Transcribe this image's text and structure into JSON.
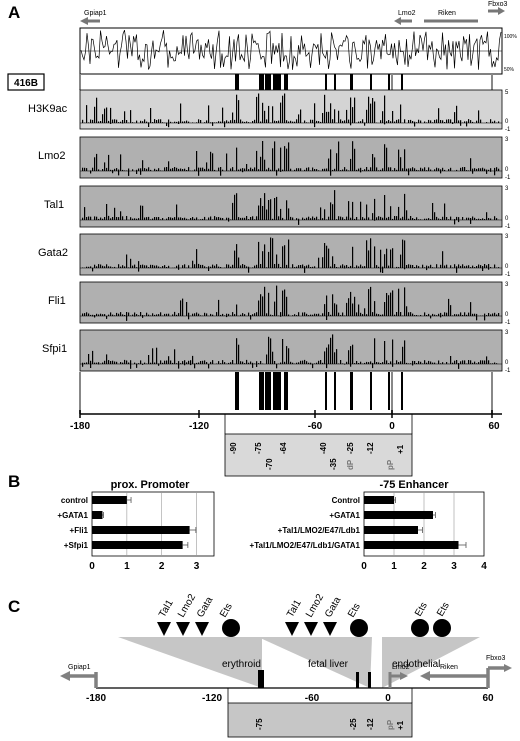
{
  "panel_a": {
    "letter": "A",
    "genes": [
      "Gpiap1",
      "Lmo2",
      "Riken",
      "Fbxo3"
    ],
    "conservation_ticks": [
      "100%",
      "50%"
    ],
    "cell_label": "416B",
    "tracks": [
      {
        "name": "H3K9ac",
        "ticks": [
          "5",
          "0",
          "-1"
        ]
      },
      {
        "name": "Lmo2",
        "ticks": [
          "3",
          "0",
          "-1"
        ]
      },
      {
        "name": "Tal1",
        "ticks": [
          "3",
          "0",
          "-1"
        ]
      },
      {
        "name": "Gata2",
        "ticks": [
          "3",
          "0",
          "-1"
        ]
      },
      {
        "name": "Fli1",
        "ticks": [
          "3",
          "0",
          "-1"
        ]
      },
      {
        "name": "Sfpi1",
        "ticks": [
          "3",
          "0",
          "-1"
        ]
      }
    ],
    "axis_ticks": [
      "-180",
      "-120",
      "-60",
      "0",
      "60"
    ],
    "element_labels": [
      "-90",
      "-75",
      "-70",
      "-64",
      "-40",
      "-35",
      "-25",
      "dP",
      "-12",
      "pP",
      "+1"
    ]
  },
  "panel_b": {
    "letter": "B",
    "left": {
      "title": "prox. Promoter",
      "axis_ticks": [
        "0",
        "1",
        "2",
        "3"
      ],
      "xlim": [
        0,
        3.5
      ],
      "bars": [
        {
          "label": "control",
          "value": 1.0,
          "err": 0.12
        },
        {
          "label": "+GATA1",
          "value": 0.3,
          "err": 0.03
        },
        {
          "label": "+Fli1",
          "value": 2.8,
          "err": 0.18
        },
        {
          "label": "+Sfpi1",
          "value": 2.6,
          "err": 0.15
        }
      ]
    },
    "right": {
      "title": "-75 Enhancer",
      "axis_ticks": [
        "0",
        "1",
        "2",
        "3",
        "4"
      ],
      "xlim": [
        0,
        4
      ],
      "bars": [
        {
          "label": "Control",
          "value": 1.0,
          "err": 0.05
        },
        {
          "label": "+GATA1",
          "value": 2.3,
          "err": 0.08
        },
        {
          "label": "+Tal1/LMO2/E47/Ldb1",
          "value": 1.8,
          "err": 0.15
        },
        {
          "label": "+Tal1/LMO2/E47/Ldb1/GATA1",
          "value": 3.15,
          "err": 0.25
        }
      ]
    }
  },
  "panel_c": {
    "letter": "C",
    "motifs": [
      "Tal1",
      "Lmo2",
      "Gata",
      "Ets"
    ],
    "cell_types": [
      "erythroid",
      "fetal liver",
      "endothelial"
    ],
    "genes": [
      "Gpiap1",
      "Lmo2",
      "Riken",
      "Fbxo3"
    ],
    "axis_ticks": [
      "-180",
      "-120",
      "-60",
      "0",
      "60"
    ],
    "element_labels": [
      "-75",
      "-25",
      "-12",
      "pP",
      "+1"
    ]
  }
}
